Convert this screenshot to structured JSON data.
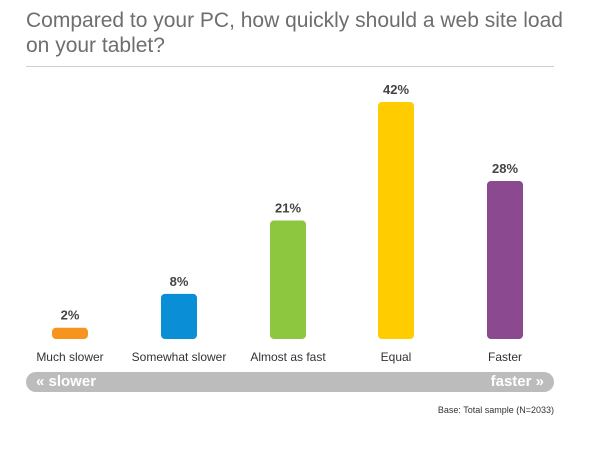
{
  "title": "Compared to your PC, how quickly should a web site load on your tablet?",
  "scale": {
    "left_label": "« slower",
    "right_label": "faster »"
  },
  "base_note": "Base: Total sample (N=2033)",
  "chart_data": {
    "type": "bar",
    "categories": [
      "Much slower",
      "Somewhat slower",
      "Almost as fast",
      "Equal",
      "Faster"
    ],
    "values": [
      2,
      8,
      21,
      42,
      28
    ],
    "value_labels": [
      "2%",
      "8%",
      "21%",
      "42%",
      "28%"
    ],
    "colors": [
      "#f7941d",
      "#0a8fd6",
      "#8dc63f",
      "#ffcc00",
      "#8b4a8f"
    ],
    "unit": "%",
    "ylim": [
      0,
      42
    ],
    "grid": false,
    "legend": "none"
  }
}
